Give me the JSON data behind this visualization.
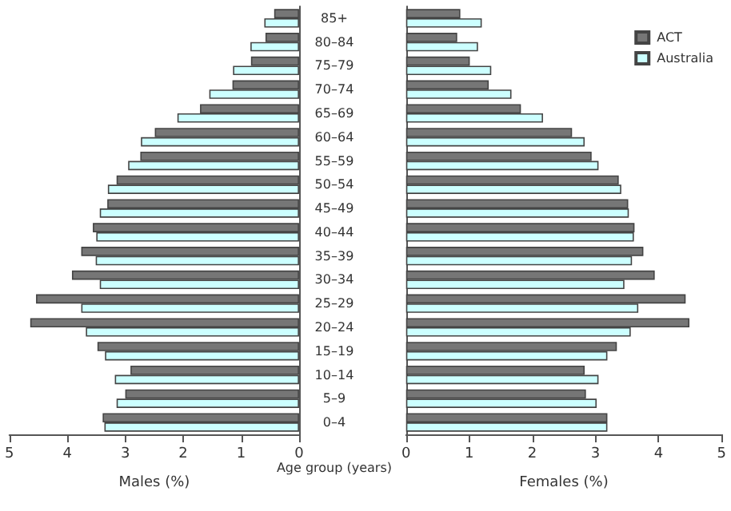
{
  "chart_data": [
    {
      "type": "bar",
      "orientation": "horizontal",
      "xlabel": "Males (%)",
      "ylabel": "Age group (years)",
      "categories": [
        "85+",
        "80–84",
        "75–79",
        "70–74",
        "65–69",
        "60–64",
        "55–59",
        "50–54",
        "45–49",
        "40–44",
        "35–39",
        "30–34",
        "25–29",
        "20–24",
        "15–19",
        "10–14",
        "5–9",
        "0–4"
      ],
      "series": [
        {
          "color": "#767676",
          "values": [
            0.43,
            0.58,
            0.83,
            1.15,
            1.71,
            2.49,
            2.74,
            3.15,
            3.31,
            3.56,
            3.76,
            3.92,
            4.54,
            4.64,
            3.48,
            2.91,
            3.0,
            3.39
          ]
        },
        {
          "color": "#ccffff",
          "values": [
            0.6,
            0.84,
            1.14,
            1.55,
            2.1,
            2.73,
            2.95,
            3.3,
            3.44,
            3.5,
            3.51,
            3.44,
            3.76,
            3.68,
            3.35,
            3.18,
            3.15,
            3.36
          ]
        }
      ],
      "xlim": [
        5,
        0
      ],
      "xticks": [
        5,
        4,
        3,
        2,
        1,
        0
      ],
      "grid": false,
      "legend": false
    },
    {
      "type": "bar",
      "orientation": "horizontal",
      "xlabel": "Females (%)",
      "categories": [
        null,
        null,
        null,
        null,
        null,
        null,
        null,
        null,
        null,
        null,
        null,
        null,
        null,
        null,
        null,
        null,
        null,
        null
      ],
      "series": [
        {
          "name": "ACT",
          "color": "#767676",
          "values": [
            0.86,
            0.81,
            1.01,
            1.31,
            1.82,
            2.63,
            2.94,
            3.37,
            3.52,
            3.62,
            3.76,
            3.94,
            4.43,
            4.49,
            3.34,
            2.83,
            2.85,
            3.19
          ]
        },
        {
          "name": "Australia",
          "color": "#ccffff",
          "values": [
            1.2,
            1.14,
            1.35,
            1.67,
            2.17,
            2.83,
            3.05,
            3.41,
            3.53,
            3.61,
            3.58,
            3.46,
            3.68,
            3.56,
            3.19,
            3.05,
            3.02,
            3.19
          ]
        }
      ],
      "xlim": [
        0,
        5
      ],
      "xticks": [
        0,
        1,
        2,
        3,
        4,
        5
      ],
      "tick_labels": "x",
      "grid": false,
      "legend": "top right"
    }
  ]
}
